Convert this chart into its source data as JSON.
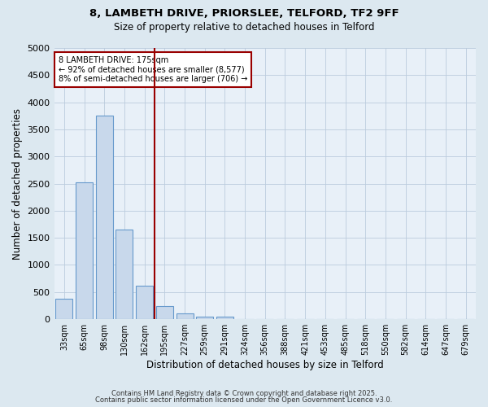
{
  "title1": "8, LAMBETH DRIVE, PRIORSLEE, TELFORD, TF2 9FF",
  "title2": "Size of property relative to detached houses in Telford",
  "xlabel": "Distribution of detached houses by size in Telford",
  "ylabel": "Number of detached properties",
  "bin_labels": [
    "33sqm",
    "65sqm",
    "98sqm",
    "130sqm",
    "162sqm",
    "195sqm",
    "227sqm",
    "259sqm",
    "291sqm",
    "324sqm",
    "356sqm",
    "388sqm",
    "421sqm",
    "453sqm",
    "485sqm",
    "518sqm",
    "550sqm",
    "582sqm",
    "614sqm",
    "647sqm",
    "679sqm"
  ],
  "bar_heights": [
    380,
    2530,
    3760,
    1650,
    620,
    240,
    110,
    45,
    40,
    0,
    0,
    0,
    0,
    0,
    0,
    0,
    0,
    0,
    0,
    0,
    0
  ],
  "bar_color": "#c8d8eb",
  "bar_edgecolor": "#6699cc",
  "vline_color": "#990000",
  "vline_x_bin": 4,
  "annotation_text": "8 LAMBETH DRIVE: 175sqm\n← 92% of detached houses are smaller (8,577)\n8% of semi-detached houses are larger (706) →",
  "annotation_box_facecolor": "#ffffff",
  "annotation_box_edgecolor": "#990000",
  "ylim": [
    0,
    5000
  ],
  "yticks": [
    0,
    500,
    1000,
    1500,
    2000,
    2500,
    3000,
    3500,
    4000,
    4500,
    5000
  ],
  "footer1": "Contains HM Land Registry data © Crown copyright and database right 2025.",
  "footer2": "Contains public sector information licensed under the Open Government Licence v3.0.",
  "bg_color": "#dce8f0",
  "plot_bg_color": "#e8f0f8"
}
